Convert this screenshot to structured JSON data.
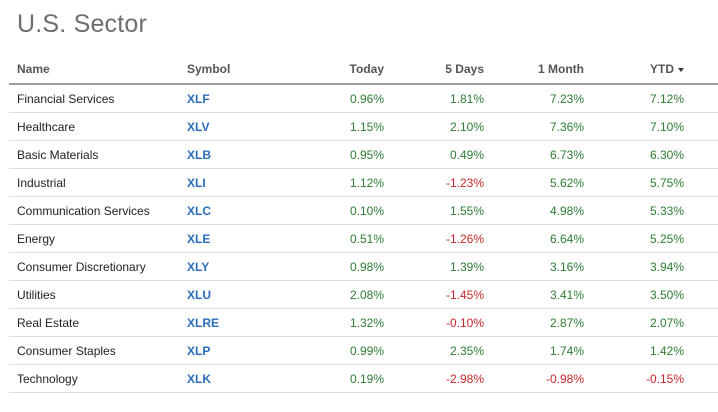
{
  "title": "U.S. Sector",
  "columns": {
    "name": "Name",
    "symbol": "Symbol",
    "today": "Today",
    "five_days": "5 Days",
    "one_month": "1 Month",
    "ytd": "YTD"
  },
  "colors": {
    "positive": "#2e7d32",
    "negative": "#c62828",
    "symbol_link": "#2a6ebb"
  },
  "rows": [
    {
      "name": "Financial Services",
      "symbol": "XLF",
      "today": "0.96%",
      "five_days": "1.81%",
      "one_month": "7.23%",
      "ytd": "7.12%"
    },
    {
      "name": "Healthcare",
      "symbol": "XLV",
      "today": "1.15%",
      "five_days": "2.10%",
      "one_month": "7.36%",
      "ytd": "7.10%"
    },
    {
      "name": "Basic Materials",
      "symbol": "XLB",
      "today": "0.95%",
      "five_days": "0.49%",
      "one_month": "6.73%",
      "ytd": "6.30%"
    },
    {
      "name": "Industrial",
      "symbol": "XLI",
      "today": "1.12%",
      "five_days": "-1.23%",
      "one_month": "5.62%",
      "ytd": "5.75%"
    },
    {
      "name": "Communication Services",
      "symbol": "XLC",
      "today": "0.10%",
      "five_days": "1.55%",
      "one_month": "4.98%",
      "ytd": "5.33%"
    },
    {
      "name": "Energy",
      "symbol": "XLE",
      "today": "0.51%",
      "five_days": "-1.26%",
      "one_month": "6.64%",
      "ytd": "5.25%"
    },
    {
      "name": "Consumer Discretionary",
      "symbol": "XLY",
      "today": "0.98%",
      "five_days": "1.39%",
      "one_month": "3.16%",
      "ytd": "3.94%"
    },
    {
      "name": "Utilities",
      "symbol": "XLU",
      "today": "2.08%",
      "five_days": "-1.45%",
      "one_month": "3.41%",
      "ytd": "3.50%"
    },
    {
      "name": "Real Estate",
      "symbol": "XLRE",
      "today": "1.32%",
      "five_days": "-0.10%",
      "one_month": "2.87%",
      "ytd": "2.07%"
    },
    {
      "name": "Consumer Staples",
      "symbol": "XLP",
      "today": "0.99%",
      "five_days": "2.35%",
      "one_month": "1.74%",
      "ytd": "1.42%"
    },
    {
      "name": "Technology",
      "symbol": "XLK",
      "today": "0.19%",
      "five_days": "-2.98%",
      "one_month": "-0.98%",
      "ytd": "-0.15%"
    }
  ]
}
